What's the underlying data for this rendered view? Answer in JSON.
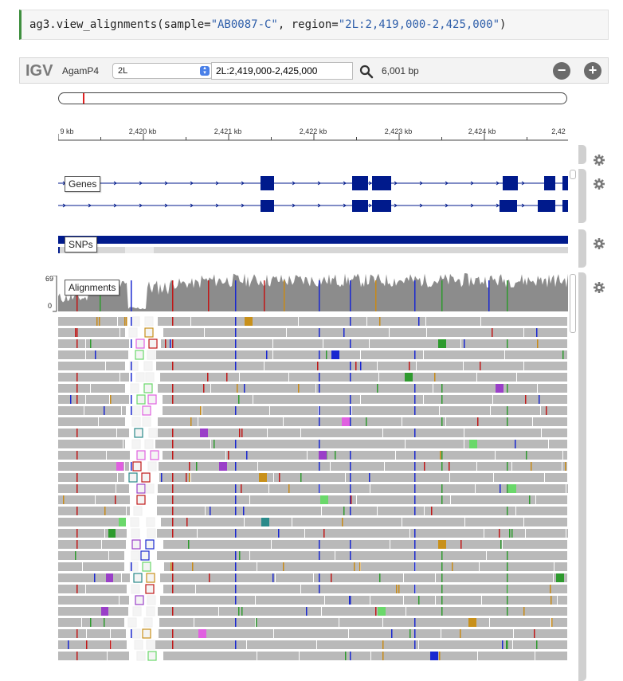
{
  "code": {
    "prefix": "ag3.view_alignments(sample=",
    "sample": "\"AB0087-C\"",
    "mid": ", region=",
    "region": "\"2L:2,419,000-2,425,000\"",
    "suffix": ")"
  },
  "igv": {
    "logo": "IGV",
    "genome": "AgamP4",
    "chromosome": "2L",
    "locus": "2L:2,419,000-2,425,000",
    "bp_width": "6,001 bp",
    "zoom_out_label": "−",
    "zoom_in_label": "+"
  },
  "ruler": {
    "ticks": [
      {
        "label": "9 kb"
      },
      {
        "label": "2,420 kb"
      },
      {
        "label": "2,421 kb"
      },
      {
        "label": "2,422 kb"
      },
      {
        "label": "2,423 kb"
      },
      {
        "label": "2,424 kb"
      },
      {
        "label": "2,42"
      }
    ]
  },
  "tracks": {
    "genes_label": "Genes",
    "snps_label": "SNPs",
    "alignments_label": "Alignments",
    "coverage_max": "69",
    "coverage_min": "0"
  },
  "colors": {
    "gene": "#001a8c",
    "snp_bar": "#001a8c",
    "read": "#b9b9b9",
    "coverage": "#8c8c8c",
    "mismatch_a": "#2e9a2e",
    "mismatch_c": "#1a28d0",
    "mismatch_g": "#c88a18",
    "mismatch_t": "#c01818"
  }
}
